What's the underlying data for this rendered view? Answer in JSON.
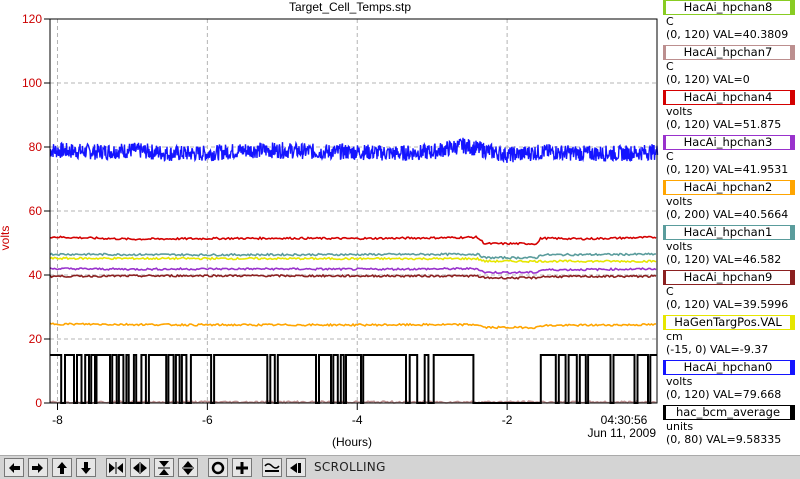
{
  "chart_data": {
    "type": "line",
    "title": "Target_Cell_Temps.stp",
    "ylabel": "volts",
    "xlabel": "(Hours)",
    "ylim": [
      0,
      120
    ],
    "xlim": [
      -8.1,
      -0.0
    ],
    "y_ticks": [
      0,
      20,
      40,
      60,
      80,
      100,
      120
    ],
    "x_ticks": [
      -8,
      -6,
      -4,
      -2
    ],
    "timestamp_time": "04:30:56",
    "timestamp_date": "Jun 11, 2009",
    "grid": true,
    "series": [
      {
        "name": "HacAi_hpchan0",
        "color": "#1414ff",
        "style": "noisy",
        "x": [
          -8.1,
          -7.5,
          -7.0,
          -6.5,
          -6.0,
          -5.5,
          -5.0,
          -4.5,
          -4.0,
          -3.5,
          -3.0,
          -2.6,
          -2.3,
          -2.0,
          -1.5,
          -1.0,
          -0.5,
          0.0
        ],
        "y": [
          79.0,
          78.5,
          79.0,
          78.0,
          78.0,
          79.0,
          79.0,
          78.5,
          78.5,
          78.0,
          78.5,
          80.5,
          79.0,
          77.5,
          78.5,
          78.0,
          78.0,
          78.5
        ]
      },
      {
        "name": "HacAi_hpchan4",
        "color": "#d40000",
        "x": [
          -8.1,
          -7.0,
          -6.0,
          -5.0,
          -4.0,
          -3.0,
          -2.4,
          -2.3,
          -1.6,
          -1.55,
          -1.0,
          0.0
        ],
        "y": [
          51.9,
          51.2,
          51.4,
          51.5,
          51.4,
          51.6,
          51.8,
          49.8,
          49.8,
          51.5,
          51.3,
          51.8
        ]
      },
      {
        "name": "HacAi_hpchan1",
        "color": "#5a9c9c",
        "x": [
          -8.1,
          -6.0,
          -4.0,
          -2.4,
          -2.3,
          -1.6,
          -1.55,
          0.0
        ],
        "y": [
          46.5,
          46.3,
          46.4,
          46.5,
          45.4,
          45.4,
          46.3,
          46.5
        ]
      },
      {
        "name": "HaGenTargPos.VAL",
        "color": "#e6e600",
        "x": [
          -8.1,
          -4.0,
          -2.4,
          -2.3,
          0.0
        ],
        "y": [
          45.2,
          45.1,
          45.1,
          44.3,
          44.3
        ]
      },
      {
        "name": "HacAi_hpchan3",
        "color": "#9932cc",
        "x": [
          -8.1,
          -7.0,
          -6.0,
          -5.0,
          -4.0,
          -3.0,
          -2.4,
          -2.3,
          -1.6,
          -1.55,
          0.0
        ],
        "y": [
          42.0,
          41.8,
          41.9,
          41.9,
          41.8,
          41.9,
          42.0,
          40.8,
          40.8,
          41.6,
          41.9
        ]
      },
      {
        "name": "HacAi_hpchan9",
        "color": "#8b2020",
        "x": [
          -8.1,
          -6.0,
          -4.0,
          -2.4,
          -2.3,
          -1.6,
          -1.55,
          0.0
        ],
        "y": [
          39.6,
          39.8,
          39.7,
          39.7,
          39.1,
          39.1,
          39.5,
          39.6
        ]
      },
      {
        "name": "HacAi_hpchan2",
        "color": "#ffa500",
        "x": [
          -8.1,
          -6.0,
          -4.0,
          -2.4,
          -2.3,
          -1.6,
          -1.55,
          0.0
        ],
        "y": [
          24.7,
          24.4,
          24.4,
          24.5,
          23.6,
          23.6,
          24.2,
          24.5
        ]
      },
      {
        "name": "HacAi_hpchan7",
        "color": "#bc8f8f",
        "x": [
          -8.1,
          0.0
        ],
        "y": [
          0.3,
          0.3
        ]
      },
      {
        "name": "hac_bcm_average",
        "color": "#000000",
        "style": "step",
        "high": 15,
        "low": 0,
        "drops": [
          [
            -7.95,
            -7.9
          ],
          [
            -7.78,
            -7.74
          ],
          [
            -7.68,
            -7.63
          ],
          [
            -7.58,
            -7.55
          ],
          [
            -7.5,
            -7.48
          ],
          [
            -7.3,
            -7.27
          ],
          [
            -7.21,
            -7.18
          ],
          [
            -7.12,
            -7.08
          ],
          [
            -7.05,
            -6.98
          ],
          [
            -6.95,
            -6.88
          ],
          [
            -6.82,
            -6.78
          ],
          [
            -6.55,
            -6.52
          ],
          [
            -6.45,
            -6.42
          ],
          [
            -6.37,
            -6.34
          ],
          [
            -6.28,
            -6.22
          ],
          [
            -5.95,
            -5.91
          ],
          [
            -5.2,
            -5.16
          ],
          [
            -5.1,
            -5.06
          ],
          [
            -4.55,
            -4.51
          ],
          [
            -4.35,
            -4.32
          ],
          [
            -4.26,
            -4.22
          ],
          [
            -4.18,
            -4.15
          ],
          [
            -3.95,
            -3.92
          ],
          [
            -3.35,
            -3.3
          ],
          [
            -3.2,
            -3.1
          ],
          [
            -3.05,
            -2.98
          ],
          [
            -2.45,
            -1.55
          ],
          [
            -1.35,
            -1.31
          ],
          [
            -1.22,
            -1.18
          ],
          [
            -1.07,
            -1.03
          ],
          [
            -0.95,
            -0.92
          ],
          [
            -0.62,
            -0.58
          ],
          [
            -0.3,
            -0.26
          ],
          [
            -0.12,
            -0.09
          ]
        ]
      }
    ]
  },
  "legend": [
    {
      "name": "HacAi_hpchan8",
      "color": "#88cc22",
      "unit": "C",
      "range": "(0, 120) VAL=40.3809"
    },
    {
      "name": "HacAi_hpchan7",
      "color": "#bc8f8f",
      "unit": "C",
      "range": "(0, 120) VAL=0"
    },
    {
      "name": "HacAi_hpchan4",
      "color": "#d40000",
      "unit": "volts",
      "range": "(0, 120) VAL=51.875"
    },
    {
      "name": "HacAi_hpchan3",
      "color": "#9932cc",
      "unit": "C",
      "range": "(0, 120) VAL=41.9531"
    },
    {
      "name": "HacAi_hpchan2",
      "color": "#ffa500",
      "unit": "volts",
      "range": "(0, 200) VAL=40.5664"
    },
    {
      "name": "HacAi_hpchan1",
      "color": "#5a9c9c",
      "unit": "volts",
      "range": "(0, 120) VAL=46.582"
    },
    {
      "name": "HacAi_hpchan9",
      "color": "#8b2020",
      "unit": "C",
      "range": "(0, 120) VAL=39.5996"
    },
    {
      "name": "HaGenTargPos.VAL",
      "color": "#e6e600",
      "unit": "cm",
      "range": "(-15, 0) VAL=-9.37"
    },
    {
      "name": "HacAi_hpchan0",
      "color": "#1414ff",
      "unit": "volts",
      "range": "(0, 120) VAL=79.668"
    },
    {
      "name": "hac_bcm_average",
      "color": "#000000",
      "unit": "units",
      "range": "(0, 80) VAL=9.58335"
    }
  ],
  "toolbar": {
    "mode_label": "SCROLLING",
    "buttons": [
      "arrow-left-icon",
      "arrow-right-icon",
      "arrow-up-icon",
      "arrow-down-icon",
      "x-compress-icon",
      "x-expand-icon",
      "y-compress-icon",
      "y-expand-icon",
      "zoom-out-icon",
      "zoom-in-icon",
      "autoscale-icon",
      "jump-end-icon"
    ]
  },
  "colors": {
    "axis_label": "#cc0000",
    "background": "#ffffff",
    "grid": "#b4b4b4",
    "toolbar": "#d4d4d4"
  }
}
